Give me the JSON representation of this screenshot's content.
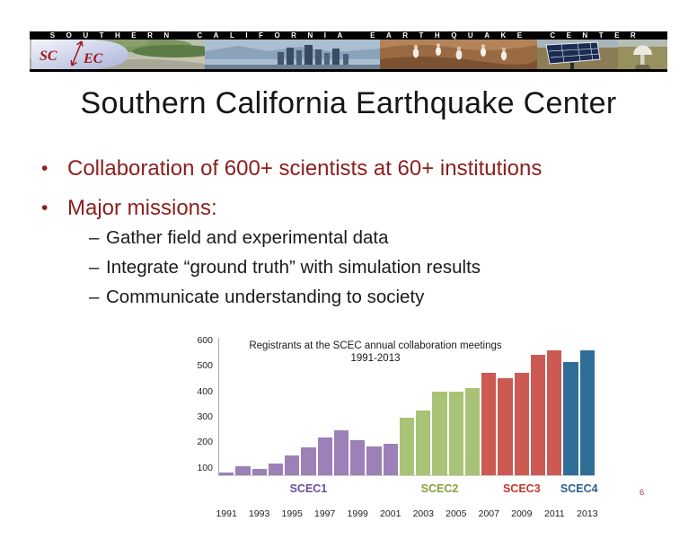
{
  "banner": {
    "title": "SOUTHERN CALIFORNIA EARTHQUAKE CENTER",
    "logo": {
      "left": "SC",
      "right": "EC"
    },
    "photo_segments": [
      "coastline",
      "la-skyline",
      "field-crew",
      "solar-panel",
      "gps-antenna"
    ]
  },
  "slide": {
    "title": "Southern California Earthquake Center",
    "bullet_marker": "•",
    "sub_marker": "–",
    "bullets": [
      {
        "text": "Collaboration of 600+ scientists at 60+ institutions"
      },
      {
        "text": "Major missions:"
      }
    ],
    "sub_bullets": [
      "Gather field and experimental data",
      "Integrate “ground truth” with simulation results",
      "Communicate understanding to society"
    ],
    "page_number": "6"
  },
  "chart_data": {
    "type": "bar",
    "title": "Registrants at the SCEC annual collaboration meetings",
    "subtitle": "1991-2013",
    "x": [
      1991,
      1992,
      1993,
      1994,
      1995,
      1996,
      1997,
      1998,
      1999,
      2000,
      2001,
      2002,
      2003,
      2004,
      2005,
      2006,
      2007,
      2008,
      2009,
      2010,
      2011,
      2012,
      2013
    ],
    "values": [
      80,
      105,
      93,
      117,
      146,
      178,
      218,
      247,
      209,
      183,
      192,
      297,
      324,
      397,
      400,
      413,
      474,
      452,
      474,
      545,
      562,
      514,
      560
    ],
    "groups": [
      {
        "label": "SCEC1",
        "from": 1991,
        "to": 2001,
        "bar_color": "#9c80b8",
        "label_color": "#6a4f9c"
      },
      {
        "label": "SCEC2",
        "from": 2002,
        "to": 2006,
        "bar_color": "#a8c276",
        "label_color": "#83a23f"
      },
      {
        "label": "SCEC3",
        "from": 2007,
        "to": 2011,
        "bar_color": "#cd5a52",
        "label_color": "#c1392e"
      },
      {
        "label": "SCEC4",
        "from": 2012,
        "to": 2013,
        "bar_color": "#2f6e96",
        "label_color": "#2b5f8d"
      }
    ],
    "yticks": [
      600,
      500,
      400,
      300,
      200,
      100
    ],
    "ylim": [
      70,
      620
    ],
    "xtick_labels": [
      "1991",
      "1993",
      "1995",
      "1997",
      "1999",
      "2001",
      "2003",
      "2005",
      "2007",
      "2009",
      "2011",
      "2013"
    ],
    "grid": false,
    "legend_position": "group-labels-below-axis"
  },
  "colors": {
    "bullet_maroon": "#8b2020",
    "page_number_red": "#a04048",
    "scec1_purple": "#9c80b8",
    "scec2_green": "#a8c276",
    "scec3_red": "#cd5a52",
    "scec4_blue": "#2f6e96"
  }
}
